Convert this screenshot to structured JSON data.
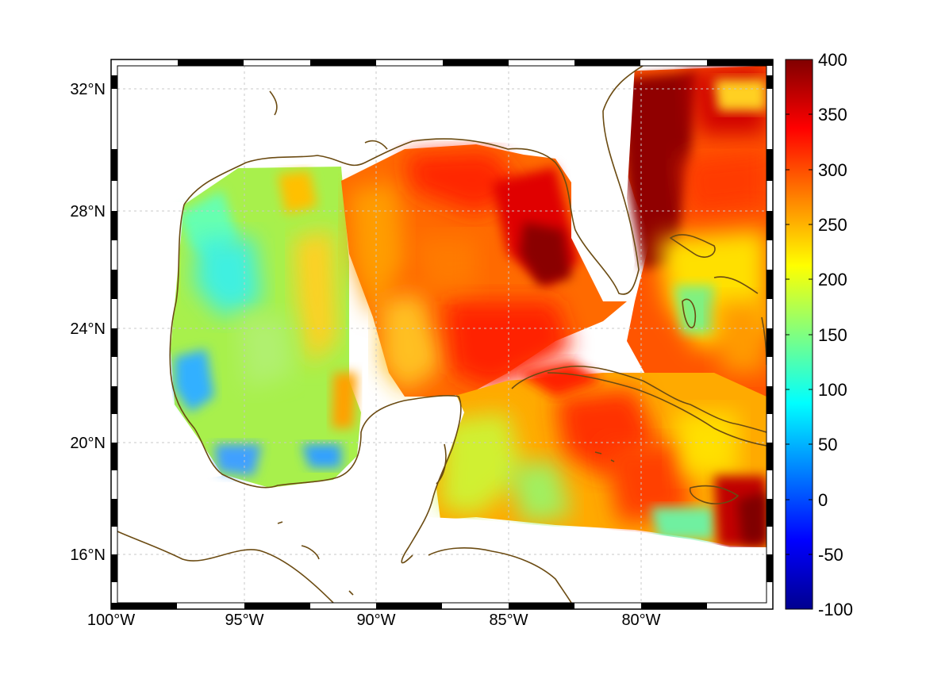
{
  "map": {
    "lon_labels": [
      "100°W",
      "95°W",
      "90°W",
      "85°W",
      "80°W"
    ],
    "lat_labels": [
      "32°N",
      "28°N",
      "24°N",
      "20°N",
      "16°N"
    ],
    "colormap": "jet",
    "coastline_color": "#6b4b12",
    "grid_color": "#c8c8c8",
    "no_data_color": "#ffffff"
  },
  "colorbar": {
    "labels": [
      "400",
      "350",
      "300",
      "250",
      "200",
      "150",
      "100",
      "50",
      "0",
      "-50",
      "-100"
    ],
    "min": -100,
    "max": 400,
    "colors": [
      "#00008f",
      "#0000ff",
      "#0080ff",
      "#00ffff",
      "#80ff80",
      "#ffff00",
      "#ff8000",
      "#ff0000",
      "#800000"
    ]
  }
}
